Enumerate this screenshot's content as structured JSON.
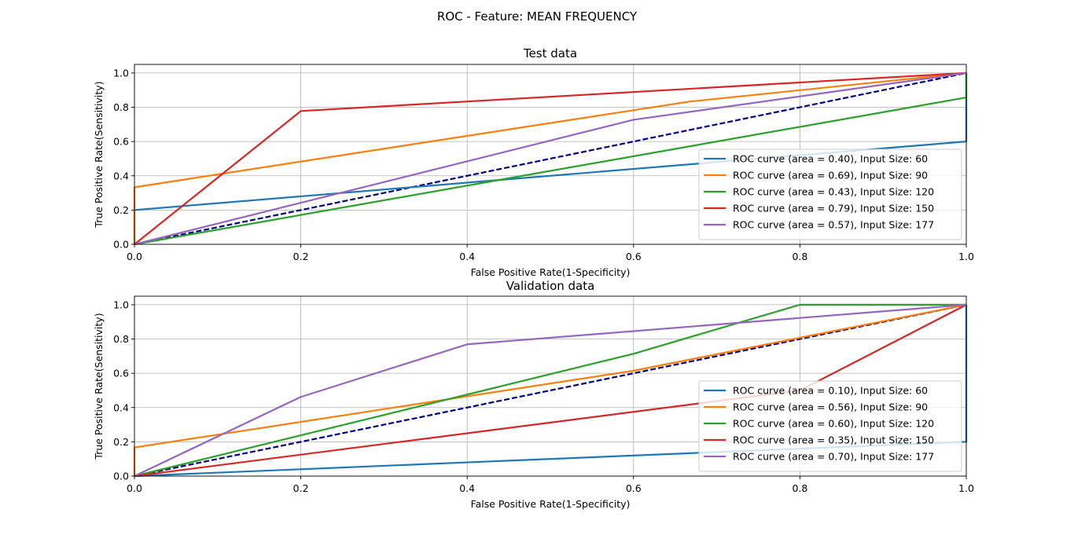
{
  "figure": {
    "title": "ROC - Feature: MEAN FREQUENCY"
  },
  "colors": {
    "tab_blue": "#1f77b4",
    "tab_orange": "#ff7f0e",
    "tab_green": "#2ca02c",
    "tab_red": "#d62728",
    "tab_purple": "#9467bd",
    "diagonal": "#000080",
    "grid": "#b0b0b0"
  },
  "chart_data": [
    {
      "type": "line",
      "title": "Test data",
      "xlabel": "False Positive Rate(1-Specificity)",
      "ylabel": "True Positive Rate(Sensitivity)",
      "xlim": [
        0.0,
        1.0
      ],
      "ylim": [
        0.0,
        1.05
      ],
      "xticks": [
        "0.0",
        "0.2",
        "0.4",
        "0.6",
        "0.8",
        "1.0"
      ],
      "yticks": [
        "0.0",
        "0.2",
        "0.4",
        "0.6",
        "0.8",
        "1.0"
      ],
      "grid": true,
      "legend_position": "lower right",
      "diagonal": {
        "x": [
          0,
          1
        ],
        "y": [
          0,
          1
        ],
        "style": "dashed"
      },
      "series": [
        {
          "name": "ROC curve (area = 0.40), Input Size: 60",
          "color": "#1f77b4",
          "x": [
            0.0,
            0.0,
            1.0,
            1.0
          ],
          "y": [
            0.0,
            0.2,
            0.6,
            1.0
          ]
        },
        {
          "name": "ROC curve (area = 0.69), Input Size: 90",
          "color": "#ff7f0e",
          "x": [
            0.0,
            0.0,
            0.667,
            1.0
          ],
          "y": [
            0.0,
            0.333,
            0.833,
            1.0
          ]
        },
        {
          "name": "ROC curve (area = 0.43), Input Size: 120",
          "color": "#2ca02c",
          "x": [
            0.0,
            1.0,
            1.0
          ],
          "y": [
            0.0,
            0.857,
            1.0
          ]
        },
        {
          "name": "ROC curve (area = 0.79), Input Size: 150",
          "color": "#d62728",
          "x": [
            0.0,
            0.2,
            1.0
          ],
          "y": [
            0.0,
            0.778,
            1.0
          ]
        },
        {
          "name": "ROC curve (area = 0.57), Input Size: 177",
          "color": "#9467bd",
          "x": [
            0.0,
            0.6,
            1.0
          ],
          "y": [
            0.0,
            0.727,
            1.0
          ]
        }
      ]
    },
    {
      "type": "line",
      "title": "Validation data",
      "xlabel": "False Positive Rate(1-Specificity)",
      "ylabel": "True Positive Rate(Sensitivity)",
      "xlim": [
        0.0,
        1.0
      ],
      "ylim": [
        0.0,
        1.05
      ],
      "xticks": [
        "0.0",
        "0.2",
        "0.4",
        "0.6",
        "0.8",
        "1.0"
      ],
      "yticks": [
        "0.0",
        "0.2",
        "0.4",
        "0.6",
        "0.8",
        "1.0"
      ],
      "grid": true,
      "legend_position": "lower right",
      "diagonal": {
        "x": [
          0,
          1
        ],
        "y": [
          0,
          1
        ],
        "style": "dashed"
      },
      "series": [
        {
          "name": "ROC curve (area = 0.10), Input Size: 60",
          "color": "#1f77b4",
          "x": [
            0.0,
            1.0,
            1.0
          ],
          "y": [
            0.0,
            0.2,
            1.0
          ]
        },
        {
          "name": "ROC curve (area = 0.56), Input Size: 90",
          "color": "#ff7f0e",
          "x": [
            0.0,
            0.0,
            0.6,
            1.0
          ],
          "y": [
            0.0,
            0.167,
            0.615,
            1.0
          ]
        },
        {
          "name": "ROC curve (area = 0.60), Input Size: 120",
          "color": "#2ca02c",
          "x": [
            0.0,
            0.6,
            0.8,
            1.0
          ],
          "y": [
            0.0,
            0.714,
            1.0,
            1.0
          ]
        },
        {
          "name": "ROC curve (area = 0.35), Input Size: 150",
          "color": "#d62728",
          "x": [
            0.0,
            0.8,
            1.0
          ],
          "y": [
            0.0,
            0.5,
            1.0
          ]
        },
        {
          "name": "ROC curve (area = 0.70), Input Size: 177",
          "color": "#9467bd",
          "x": [
            0.0,
            0.2,
            0.4,
            1.0
          ],
          "y": [
            0.0,
            0.462,
            0.769,
            1.0
          ]
        }
      ]
    }
  ]
}
